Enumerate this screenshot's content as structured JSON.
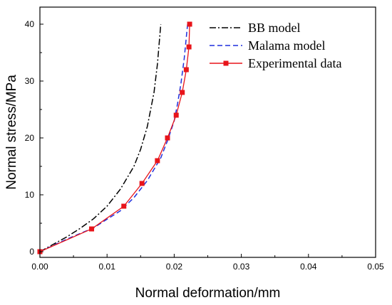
{
  "chart_data": {
    "type": "line",
    "xlabel": "Normal deformation/mm",
    "ylabel": "Normal stress/MPa",
    "xlim": [
      0,
      0.05
    ],
    "ylim": [
      -1,
      43
    ],
    "xticks": [
      "0.00",
      "0.01",
      "0.02",
      "0.03",
      "0.04",
      "0.05"
    ],
    "xtick_values": [
      0,
      0.01,
      0.02,
      0.03,
      0.04,
      0.05
    ],
    "yticks": [
      "0",
      "10",
      "20",
      "30",
      "40"
    ],
    "ytick_values": [
      0,
      10,
      20,
      30,
      40
    ],
    "legend_position": "top-right",
    "grid": false,
    "series": [
      {
        "name": "BB model",
        "style": "dash-dot",
        "color": "#000000",
        "x": [
          0,
          0.002,
          0.004,
          0.006,
          0.008,
          0.01,
          0.012,
          0.014,
          0.015,
          0.016,
          0.017,
          0.0175,
          0.018
        ],
        "y": [
          0,
          1.3,
          2.6,
          4.1,
          5.8,
          8.0,
          11.0,
          15.0,
          18.0,
          22.0,
          28.0,
          33.0,
          40.0
        ]
      },
      {
        "name": "Malama model",
        "style": "dashed",
        "color": "#1f2fdd",
        "x": [
          0,
          0.004,
          0.008,
          0.012,
          0.014,
          0.016,
          0.018,
          0.019,
          0.02,
          0.0205,
          0.021,
          0.0215,
          0.022
        ],
        "y": [
          0,
          2.2,
          4.2,
          7.2,
          9.5,
          12.5,
          16.5,
          19.5,
          23.0,
          26.0,
          29.5,
          34.0,
          40.0
        ]
      },
      {
        "name": "Experimental data",
        "style": "solid-square",
        "color": "#e8141a",
        "x": [
          0,
          0.0077,
          0.0125,
          0.0152,
          0.0175,
          0.019,
          0.0203,
          0.0212,
          0.0218,
          0.0222,
          0.0223
        ],
        "y": [
          0,
          4,
          8,
          12,
          16,
          20,
          24,
          28,
          32,
          36,
          40
        ]
      }
    ]
  }
}
